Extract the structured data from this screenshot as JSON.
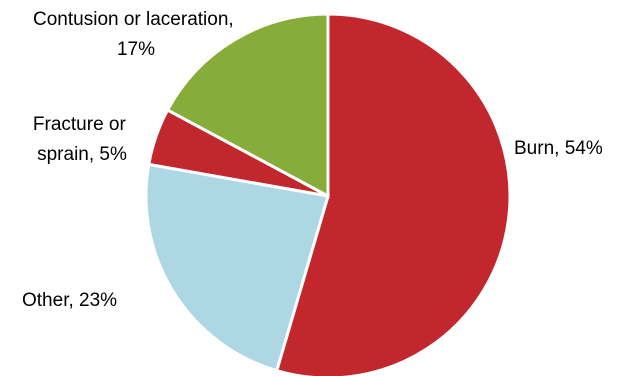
{
  "chart_data": {
    "type": "pie",
    "title": "",
    "legend": "none",
    "slices": [
      {
        "name": "Burn",
        "value": 54,
        "label_line1": "Burn, 54%",
        "label_line2": "",
        "color": "#c1272d"
      },
      {
        "name": "Other",
        "value": 23,
        "label_line1": "Other, 23%",
        "label_line2": "",
        "color": "#add8e3"
      },
      {
        "name": "Fracture or sprain",
        "value": 5,
        "label_line1": "Fracture or",
        "label_line2": "sprain, 5%",
        "color": "#c1272d"
      },
      {
        "name": "Contusion or laceration",
        "value": 17,
        "label_line1": "Contusion or laceration,",
        "label_line2": "17%",
        "color": "#86ac3a"
      }
    ]
  }
}
